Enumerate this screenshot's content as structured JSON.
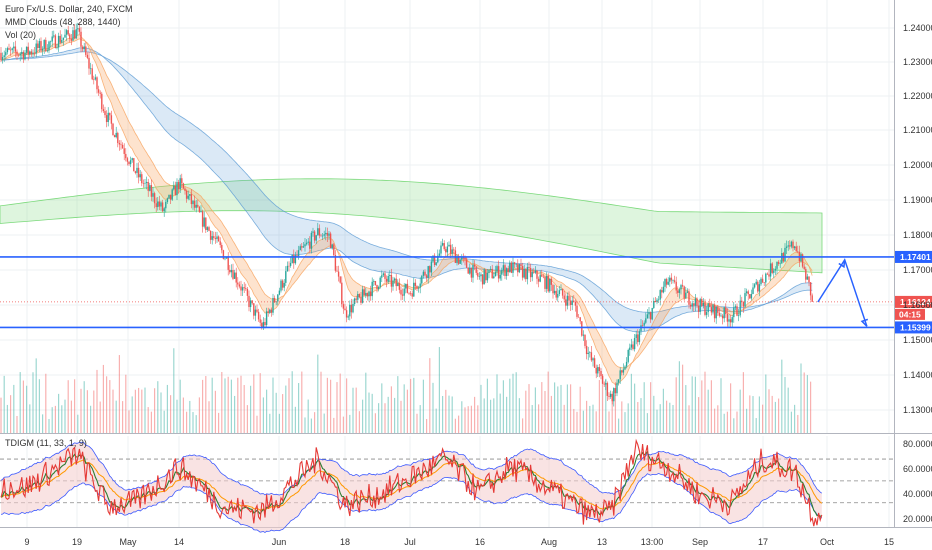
{
  "legend": {
    "symbol": "Euro Fx/U.S. Dollar, 240, FXCM",
    "clouds": "MMD Clouds (48, 288, 1440)",
    "volume": "Vol (20)",
    "osc": "TDIGM (11, 33, 1, 9)"
  },
  "colors": {
    "up": "#26a69a",
    "down": "#ef5350",
    "level_line": "#2962ff",
    "cloud_fast": "#f7a35c",
    "cloud_mid": "#5b9bd5",
    "cloud_slow": "#7bd97b"
  },
  "chart_data": [
    {
      "type": "candlestick",
      "y_ticks": [
        "1.24000",
        "1.23000",
        "1.22000",
        "1.21000",
        "1.20000",
        "1.19000",
        "1.18000",
        "1.17000",
        "1.16000",
        "1.15000",
        "1.14000",
        "1.13000"
      ],
      "x_ticks": [
        "9",
        "19",
        "May",
        "14",
        "Jun",
        "18",
        "Jul",
        "16",
        "Aug",
        "13",
        "13:00",
        "Sep",
        "17",
        "Oct",
        "15"
      ],
      "ylim": [
        1.124,
        1.247
      ],
      "levels": [
        {
          "price": 1.17401,
          "label": "1.17401",
          "color": "#2962ff"
        },
        {
          "price": 1.15399,
          "label": "1.15399",
          "color": "#2962ff"
        }
      ],
      "last_price": {
        "price": 1.16124,
        "label": "1.16124",
        "countdown": "04:15",
        "color": "#ef5350"
      },
      "projection": [
        {
          "x": "29 Sep",
          "y": 1.1612
        },
        {
          "x": "5 Oct",
          "y": 1.1732
        },
        {
          "x": "10 Oct",
          "y": 1.1543
        }
      ],
      "close_path": [
        {
          "x": "9 Apr",
          "y": 1.232
        },
        {
          "x": "19 Apr",
          "y": 1.238
        },
        {
          "x": "26 Apr",
          "y": 1.214
        },
        {
          "x": "3 May",
          "y": 1.198
        },
        {
          "x": "10 May",
          "y": 1.187
        },
        {
          "x": "14 May",
          "y": 1.195
        },
        {
          "x": "22 May",
          "y": 1.175
        },
        {
          "x": "29 May",
          "y": 1.154
        },
        {
          "x": "4 Jun",
          "y": 1.172
        },
        {
          "x": "11 Jun",
          "y": 1.181
        },
        {
          "x": "14 Jun",
          "y": 1.18
        },
        {
          "x": "18 Jun",
          "y": 1.158
        },
        {
          "x": "26 Jun",
          "y": 1.168
        },
        {
          "x": "2 Jul",
          "y": 1.164
        },
        {
          "x": "9 Jul",
          "y": 1.177
        },
        {
          "x": "16 Jul",
          "y": 1.168
        },
        {
          "x": "23 Jul",
          "y": 1.171
        },
        {
          "x": "30 Jul",
          "y": 1.168
        },
        {
          "x": "7 Aug",
          "y": 1.16
        },
        {
          "x": "10 Aug",
          "y": 1.146
        },
        {
          "x": "15 Aug",
          "y": 1.134
        },
        {
          "x": "20 Aug",
          "y": 1.15
        },
        {
          "x": "27 Aug",
          "y": 1.167
        },
        {
          "x": "3 Sep",
          "y": 1.16
        },
        {
          "x": "10 Sep",
          "y": 1.157
        },
        {
          "x": "17 Sep",
          "y": 1.168
        },
        {
          "x": "24 Sep",
          "y": 1.178
        },
        {
          "x": "27 Sep",
          "y": 1.166
        },
        {
          "x": "28 Sep",
          "y": 1.1612
        }
      ]
    },
    {
      "type": "line",
      "title": "TDIGM (11, 33, 1, 9)",
      "y_ticks": [
        "80.0000",
        "60.0000",
        "40.0000",
        "20.0000"
      ],
      "ylim": [
        12,
        87
      ],
      "levels": [
        68,
        50,
        32
      ],
      "series": [
        {
          "values": [
            {
              "x": "9 Apr",
              "y": 45
            },
            {
              "x": "19 Apr",
              "y": 72
            },
            {
              "x": "26 Apr",
              "y": 30
            },
            {
              "x": "3 May",
              "y": 32
            },
            {
              "x": "14 May",
              "y": 62
            },
            {
              "x": "22 May",
              "y": 28
            },
            {
              "x": "29 May",
              "y": 25
            },
            {
              "x": "11 Jun",
              "y": 68
            },
            {
              "x": "18 Jun",
              "y": 30
            },
            {
              "x": "26 Jun",
              "y": 40
            },
            {
              "x": "9 Jul",
              "y": 68
            },
            {
              "x": "16 Jul",
              "y": 40
            },
            {
              "x": "23 Jul",
              "y": 62
            },
            {
              "x": "30 Jul",
              "y": 48
            },
            {
              "x": "10 Aug",
              "y": 22
            },
            {
              "x": "15 Aug",
              "y": 25
            },
            {
              "x": "20 Aug",
              "y": 75
            },
            {
              "x": "27 Aug",
              "y": 62
            },
            {
              "x": "3 Sep",
              "y": 38
            },
            {
              "x": "10 Sep",
              "y": 32
            },
            {
              "x": "17 Sep",
              "y": 68
            },
            {
              "x": "24 Sep",
              "y": 58
            },
            {
              "x": "28 Sep",
              "y": 22
            }
          ]
        }
      ]
    }
  ]
}
